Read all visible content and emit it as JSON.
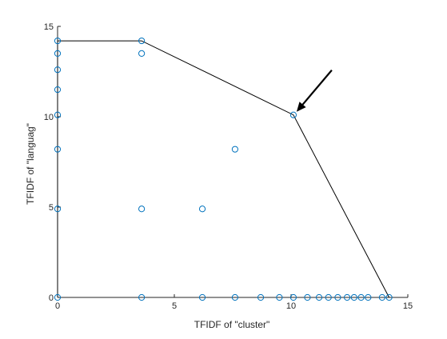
{
  "chart_data": {
    "type": "scatter",
    "title": "",
    "xlabel": "TFIDF of \"cluster\"",
    "ylabel": "TFIDF of \"languag\"",
    "xlim": [
      0,
      15
    ],
    "ylim": [
      0,
      15
    ],
    "xticks": [
      "0",
      "5",
      "10",
      "15"
    ],
    "yticks": [
      "0",
      "5",
      "10",
      "15"
    ],
    "grid": false,
    "series": [
      {
        "points": [
          {
            "x": 0,
            "y": 0
          },
          {
            "x": 0,
            "y": 4.9
          },
          {
            "x": 0,
            "y": 8.2
          },
          {
            "x": 0,
            "y": 10.1
          },
          {
            "x": 0,
            "y": 11.5
          },
          {
            "x": 0,
            "y": 12.6
          },
          {
            "x": 0,
            "y": 13.5
          },
          {
            "x": 0,
            "y": 14.2
          },
          {
            "x": 3.6,
            "y": 14.2
          },
          {
            "x": 3.6,
            "y": 13.5
          },
          {
            "x": 3.6,
            "y": 4.9
          },
          {
            "x": 3.6,
            "y": 0
          },
          {
            "x": 6.2,
            "y": 4.9
          },
          {
            "x": 6.2,
            "y": 0
          },
          {
            "x": 7.6,
            "y": 8.2
          },
          {
            "x": 7.6,
            "y": 0
          },
          {
            "x": 8.7,
            "y": 0
          },
          {
            "x": 9.5,
            "y": 0
          },
          {
            "x": 10.1,
            "y": 10.1
          },
          {
            "x": 10.1,
            "y": 0
          },
          {
            "x": 10.7,
            "y": 0
          },
          {
            "x": 11.2,
            "y": 0
          },
          {
            "x": 11.6,
            "y": 0
          },
          {
            "x": 12.0,
            "y": 0
          },
          {
            "x": 12.4,
            "y": 0
          },
          {
            "x": 12.7,
            "y": 0
          },
          {
            "x": 13.0,
            "y": 0
          },
          {
            "x": 13.3,
            "y": 0
          },
          {
            "x": 13.9,
            "y": 0
          },
          {
            "x": 14.2,
            "y": 0
          }
        ]
      }
    ],
    "hull": [
      {
        "x": 0,
        "y": 0
      },
      {
        "x": 0,
        "y": 14.2
      },
      {
        "x": 3.6,
        "y": 14.2
      },
      {
        "x": 10.1,
        "y": 10.1
      },
      {
        "x": 14.2,
        "y": 0
      }
    ],
    "annotation": {
      "type": "arrow",
      "target": {
        "x": 10.1,
        "y": 10.1
      }
    },
    "colors": {
      "marker": "#0072BD",
      "line": "#000000",
      "axis": "#262626"
    }
  }
}
